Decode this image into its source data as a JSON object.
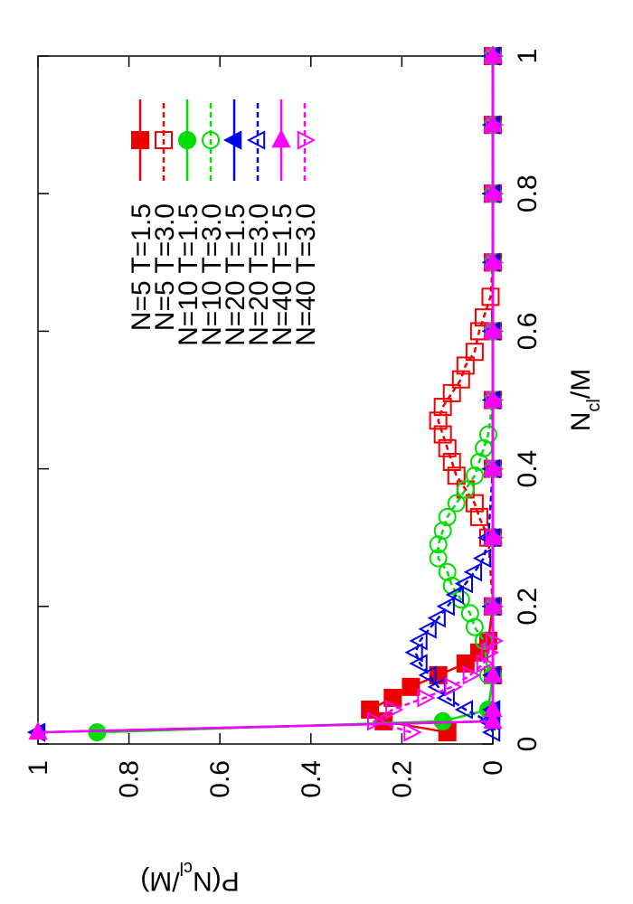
{
  "chart_data": {
    "type": "line",
    "xlabel": [
      "N",
      "cl",
      "/M"
    ],
    "ylabel": [
      "P(N",
      "cl",
      "/M)"
    ],
    "xlim": [
      0,
      1
    ],
    "xticks": [
      0,
      0.2,
      0.4,
      0.6,
      0.8,
      1
    ],
    "ylim": [
      0,
      1
    ],
    "yticks": [
      0,
      0.2,
      0.4,
      0.6,
      0.8,
      1
    ],
    "grid": false,
    "legend": "top-right",
    "rotation": -90,
    "series": [
      {
        "name": "N=5 T=1.5",
        "color": "#ee0000",
        "marker": "square",
        "filled": true,
        "dashed": false,
        "x": [
          0.017,
          0.033,
          0.05,
          0.067,
          0.083,
          0.1,
          0.117,
          0.133,
          0.15,
          0.2,
          0.3,
          0.4,
          0.5,
          0.6,
          0.7,
          0.8,
          0.9,
          1
        ],
        "values": [
          0.1,
          0.24,
          0.27,
          0.22,
          0.18,
          0.12,
          0.06,
          0.03,
          0.01,
          0,
          0,
          0,
          0,
          0,
          0,
          0,
          0,
          0
        ]
      },
      {
        "name": "N=5 T=3.0",
        "color": "#ee0000",
        "marker": "square",
        "filled": false,
        "dashed": true,
        "x": [
          0.1,
          0.2,
          0.3,
          0.33,
          0.35,
          0.37,
          0.39,
          0.41,
          0.43,
          0.45,
          0.47,
          0.49,
          0.51,
          0.53,
          0.55,
          0.57,
          0.6,
          0.62,
          0.65,
          0.7,
          0.8,
          0.9,
          1
        ],
        "values": [
          0,
          0,
          0.01,
          0.03,
          0.04,
          0.06,
          0.08,
          0.09,
          0.1,
          0.11,
          0.12,
          0.11,
          0.09,
          0.07,
          0.06,
          0.04,
          0.03,
          0.02,
          0.005,
          0,
          0,
          0,
          0
        ]
      },
      {
        "name": "N=10 T=1.5",
        "color": "#00dd00",
        "marker": "circle",
        "filled": true,
        "dashed": false,
        "x": [
          0.017,
          0.033,
          0.05,
          0.1,
          0.2,
          0.3,
          0.4,
          0.5,
          0.6,
          0.7,
          0.8,
          0.9,
          1
        ],
        "values": [
          0.87,
          0.11,
          0.01,
          0,
          0,
          0,
          0,
          0,
          0,
          0,
          0,
          0,
          0
        ]
      },
      {
        "name": "N=10 T=3.0",
        "color": "#00dd00",
        "marker": "circle",
        "filled": false,
        "dashed": true,
        "x": [
          0.1,
          0.15,
          0.17,
          0.19,
          0.21,
          0.23,
          0.25,
          0.27,
          0.29,
          0.31,
          0.33,
          0.35,
          0.37,
          0.39,
          0.41,
          0.43,
          0.45,
          0.5,
          0.6,
          0.7,
          0.8,
          0.9,
          1
        ],
        "values": [
          0.01,
          0.02,
          0.04,
          0.05,
          0.07,
          0.09,
          0.1,
          0.12,
          0.12,
          0.11,
          0.1,
          0.08,
          0.06,
          0.04,
          0.03,
          0.02,
          0.01,
          0,
          0,
          0,
          0,
          0,
          0
        ]
      },
      {
        "name": "N=20 T=1.5",
        "color": "#0000ee",
        "marker": "triangle-up",
        "filled": true,
        "dashed": false,
        "x": [
          0.017,
          0.033,
          0.05,
          0.1,
          0.2,
          0.3,
          0.4,
          0.5,
          0.6,
          0.7,
          0.8,
          0.9,
          1
        ],
        "values": [
          1,
          0,
          0,
          0,
          0,
          0,
          0,
          0,
          0,
          0,
          0,
          0,
          0
        ]
      },
      {
        "name": "N=20 T=3.0",
        "color": "#0000ee",
        "marker": "triangle-up",
        "filled": false,
        "dashed": true,
        "x": [
          0.017,
          0.033,
          0.05,
          0.067,
          0.083,
          0.1,
          0.117,
          0.133,
          0.15,
          0.167,
          0.183,
          0.2,
          0.217,
          0.233,
          0.25,
          0.27,
          0.3,
          0.4,
          0.5,
          0.6,
          0.7,
          0.8,
          0.9,
          1
        ],
        "values": [
          0,
          0.01,
          0.06,
          0.1,
          0.12,
          0.14,
          0.16,
          0.17,
          0.16,
          0.14,
          0.12,
          0.1,
          0.08,
          0.06,
          0.04,
          0.02,
          0.01,
          0,
          0,
          0,
          0,
          0,
          0,
          0
        ]
      },
      {
        "name": "N=40 T=1.5",
        "color": "#ff00ff",
        "marker": "triangle-right",
        "filled": true,
        "dashed": false,
        "x": [
          0.017,
          0.033,
          0.05,
          0.1,
          0.2,
          0.3,
          0.4,
          0.5,
          0.6,
          0.7,
          0.8,
          0.9,
          1
        ],
        "values": [
          1,
          0,
          0,
          0,
          0,
          0,
          0,
          0,
          0,
          0,
          0,
          0,
          0
        ]
      },
      {
        "name": "N=40 T=3.0",
        "color": "#ff00ff",
        "marker": "triangle-down",
        "filled": false,
        "dashed": true,
        "x": [
          0.017,
          0.033,
          0.05,
          0.067,
          0.083,
          0.1,
          0.117,
          0.133,
          0.15,
          0.2,
          0.3,
          0.4,
          0.5,
          0.6,
          0.7,
          0.8,
          0.9,
          1
        ],
        "values": [
          0.18,
          0.26,
          0.22,
          0.15,
          0.09,
          0.05,
          0.02,
          0.01,
          0,
          0,
          0,
          0,
          0,
          0,
          0,
          0,
          0,
          0
        ]
      }
    ]
  }
}
